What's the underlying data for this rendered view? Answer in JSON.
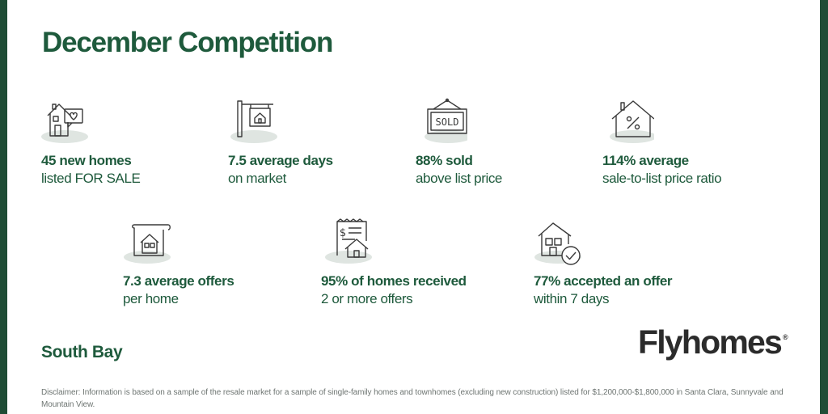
{
  "title": "December Competition",
  "stats_row1": [
    {
      "icon": "house-heart-icon",
      "bold": "45 new homes",
      "sub": "listed FOR SALE"
    },
    {
      "icon": "for-sale-sign-icon",
      "bold": "7.5 average days",
      "sub": "on market"
    },
    {
      "icon": "sold-sign-icon",
      "bold": "88% sold",
      "sub": "above list price"
    },
    {
      "icon": "house-percent-icon",
      "bold": "114% average",
      "sub": "sale-to-list price ratio"
    }
  ],
  "stats_row2": [
    {
      "icon": "house-document-icon",
      "bold": "7.3  average offers",
      "sub": "per home"
    },
    {
      "icon": "receipt-house-icon",
      "bold": "95% of homes received",
      "sub": "2 or more offers"
    },
    {
      "icon": "house-check-icon",
      "bold": "77% accepted an offer",
      "sub": "within 7 days"
    }
  ],
  "region": "South Bay",
  "logo": {
    "text": "Flyhomes",
    "mark": "®"
  },
  "disclaimer": "Disclaimer: Information is based on a sample of the resale market for a sample of single-family homes and townhomes (excluding new construction) listed for $1,200,000-$1,800,000 in Santa Clara, Sunnyvale and Mountain View.",
  "colors": {
    "brand_green": "#1e5a3c",
    "frame_green": "#1f4d36",
    "icon_shadow": "#dfe5e1",
    "logo": "#2b2b2b"
  }
}
